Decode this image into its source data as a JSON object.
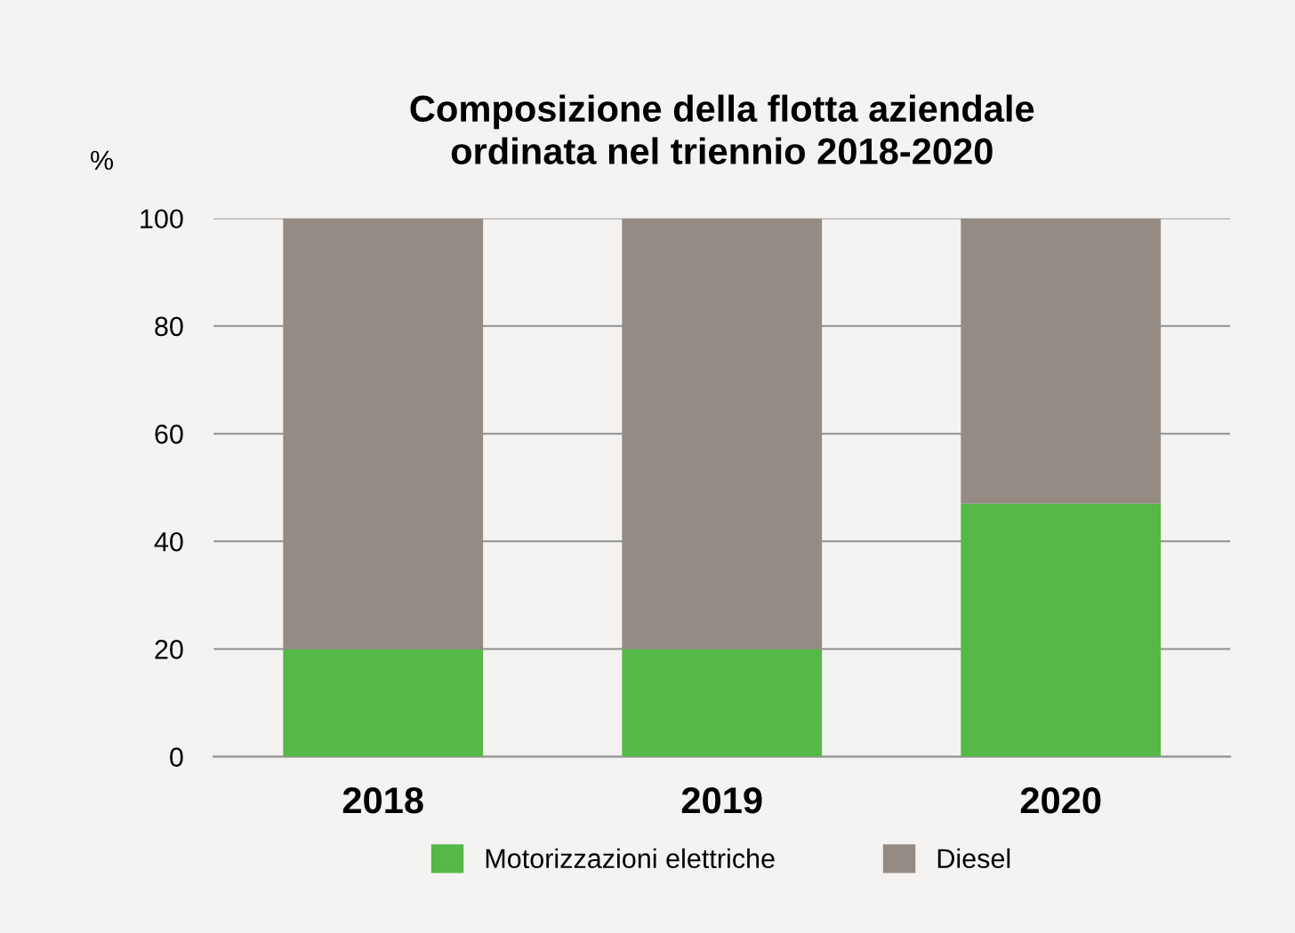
{
  "chart_data": {
    "type": "bar",
    "title": "Composizione della flotta aziendale\nordinata nel triennio 2018-2020",
    "ylabel": "%",
    "categories": [
      "2018",
      "2019",
      "2020"
    ],
    "stacked": true,
    "series": [
      {
        "name": "Motorizzazioni elettriche",
        "color": "#56b847",
        "values": [
          20,
          20,
          47
        ]
      },
      {
        "name": "Diesel",
        "color": "#948b84",
        "values": [
          80,
          80,
          53
        ]
      }
    ],
    "ylim": [
      0,
      100
    ],
    "yticks": [
      0,
      20,
      40,
      60,
      80,
      100
    ],
    "grid": "y",
    "legend": "bottom"
  }
}
